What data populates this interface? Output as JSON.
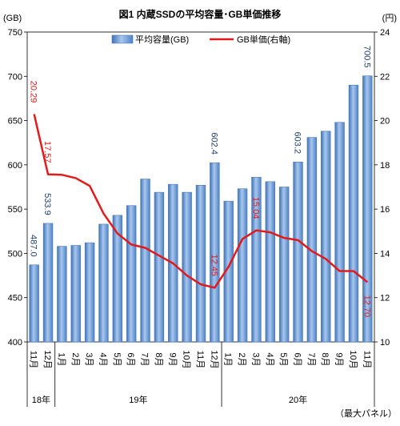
{
  "chart_data": {
    "type": "bar",
    "title": "図1  内蔵SSDの平均容量･GB単価推移",
    "y_left_unit": "(GB)",
    "y_right_unit": "(円)",
    "note": "（最大パネル）",
    "legend": {
      "bar_label": "平均容量(GB)",
      "line_label": "GB単価(右軸)",
      "position": "top"
    },
    "ylim_left": [
      400,
      750
    ],
    "yticks_left": [
      400,
      450,
      500,
      550,
      600,
      650,
      700,
      750
    ],
    "ylim_right": [
      10,
      24
    ],
    "yticks_right": [
      10,
      12,
      14,
      16,
      18,
      20,
      22,
      24
    ],
    "grid": false,
    "categories": [
      "11月",
      "12月",
      "1月",
      "2月",
      "3月",
      "4月",
      "5月",
      "6月",
      "7月",
      "8月",
      "9月",
      "10月",
      "11月",
      "12月",
      "1月",
      "2月",
      "3月",
      "4月",
      "5月",
      "6月",
      "7月",
      "8月",
      "9月",
      "10月",
      "11月"
    ],
    "year_groups": [
      {
        "label": "18年",
        "span": 2
      },
      {
        "label": "19年",
        "span": 12
      },
      {
        "label": "20年",
        "span": 11
      }
    ],
    "series": [
      {
        "name": "平均容量(GB)",
        "type": "bar",
        "axis": "left",
        "color": "#5b8fd0",
        "values": [
          487.0,
          533.9,
          508,
          509,
          512,
          533,
          543,
          554,
          584,
          569,
          578,
          569,
          577,
          602.4,
          559,
          573,
          586,
          581,
          575,
          603.2,
          631,
          638,
          648,
          690,
          700.5
        ]
      },
      {
        "name": "GB単価(右軸)",
        "type": "line",
        "axis": "right",
        "color": "#e31a1c",
        "values": [
          20.29,
          17.57,
          17.55,
          17.4,
          17.05,
          15.8,
          14.9,
          14.4,
          14.25,
          13.9,
          13.55,
          13.0,
          12.6,
          12.45,
          13.4,
          14.65,
          15.04,
          14.95,
          14.7,
          14.6,
          14.1,
          13.75,
          13.2,
          13.2,
          12.7
        ]
      }
    ],
    "bar_data_labels": [
      {
        "index": 0,
        "text": "487.0"
      },
      {
        "index": 1,
        "text": "533.9"
      },
      {
        "index": 13,
        "text": "602.4"
      },
      {
        "index": 19,
        "text": "603.2"
      },
      {
        "index": 24,
        "text": "700.5"
      }
    ],
    "line_data_labels": [
      {
        "index": 0,
        "text": "20.29"
      },
      {
        "index": 1,
        "text": "17.57"
      },
      {
        "index": 13,
        "text": "12.45"
      },
      {
        "index": 16,
        "text": "15.04"
      },
      {
        "index": 24,
        "text": "12.70"
      }
    ]
  }
}
